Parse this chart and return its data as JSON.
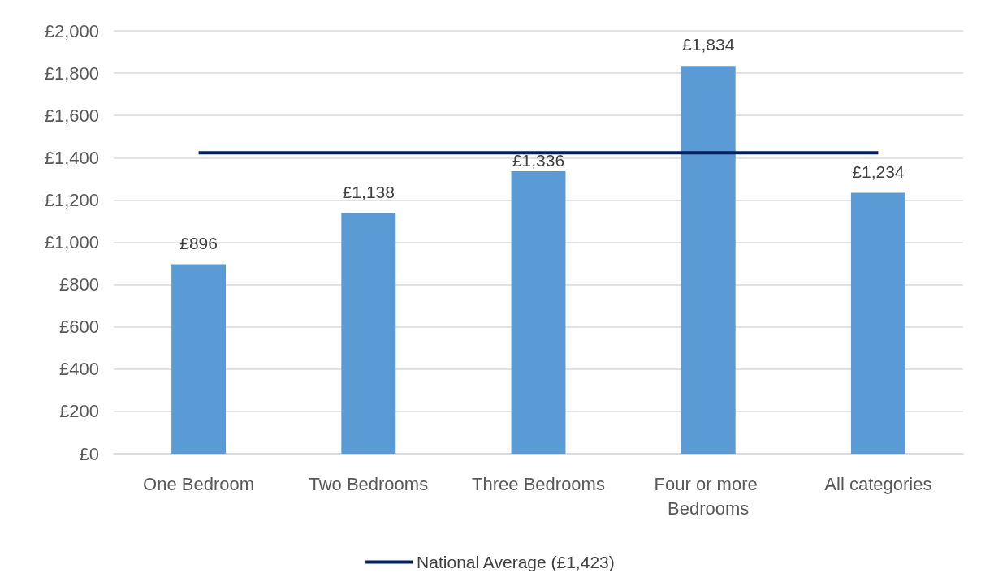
{
  "chart_data": {
    "type": "bar",
    "categories": [
      "One Bedroom",
      "Two Bedrooms",
      "Three Bedrooms",
      "Four or more Bedrooms",
      "All categories"
    ],
    "series": [
      {
        "color": "#5b9bd5",
        "values": [
          896,
          1138,
          1336,
          1834,
          1234
        ],
        "value_labels": [
          "£896",
          "£1,138",
          "£1,336",
          "£1,834",
          "£1,234"
        ]
      },
      {
        "type": "line",
        "name": "National Average (£1,423)",
        "color": "#002060",
        "values": [
          1423,
          1423,
          1423,
          1423,
          1423
        ],
        "marker": "none"
      }
    ],
    "ylim": [
      0,
      2000
    ],
    "yticks": [
      {
        "value": 0,
        "label": "£0"
      },
      {
        "value": 200,
        "label": "£200"
      },
      {
        "value": 400,
        "label": "£400"
      },
      {
        "value": 600,
        "label": "£600"
      },
      {
        "value": 800,
        "label": "£800"
      },
      {
        "value": 1000,
        "label": "£1,000"
      },
      {
        "value": 1200,
        "label": "£1,200"
      },
      {
        "value": 1400,
        "label": "£1,400"
      },
      {
        "value": 1600,
        "label": "£1,600"
      },
      {
        "value": 1800,
        "label": "£1,800"
      },
      {
        "value": 2000,
        "label": "£2,000"
      }
    ],
    "grid": "y",
    "legend": "bottom"
  }
}
